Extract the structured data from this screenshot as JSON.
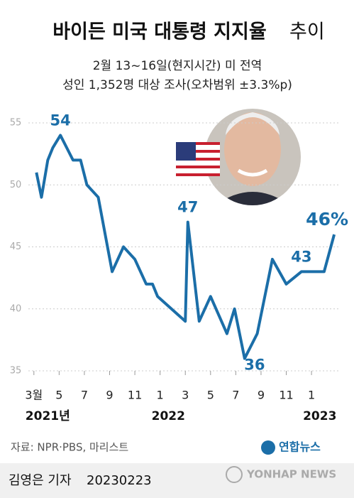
{
  "chart_data": {
    "type": "line",
    "title": "바이든 미국 대통령 지지율",
    "title_suffix": "추이",
    "subtitle": [
      "2월 13~16일(현지시간) 미 전역",
      "성인 1,352명 대상 조사(오차범위 ±3.3%p)"
    ],
    "x": [
      0.2,
      0.6,
      1.1,
      1.5,
      2.1,
      2.6,
      3.1,
      3.7,
      4.2,
      5.1,
      6.2,
      7.1,
      8.0,
      8.9,
      9.4,
      9.8,
      12.0,
      12.2,
      13.1,
      14.0,
      15.3,
      15.9,
      16.7,
      17.7,
      18.9,
      20.0,
      21.2,
      22.2,
      23.0,
      23.8
    ],
    "values": [
      51,
      49,
      52,
      53,
      54,
      53,
      52,
      52,
      50,
      49,
      43,
      45,
      44,
      42,
      42,
      41,
      39,
      47,
      39,
      41,
      38,
      40,
      36,
      38,
      44,
      42,
      43,
      43,
      43,
      46
    ],
    "value_labels": [
      null,
      null,
      null,
      null,
      "54",
      null,
      null,
      null,
      null,
      null,
      null,
      null,
      null,
      null,
      null,
      null,
      null,
      "47",
      null,
      null,
      null,
      null,
      "36",
      null,
      null,
      null,
      "43",
      null,
      null,
      "46%"
    ],
    "color": "#1b6ea8",
    "xlim": [
      -1,
      24.3
    ],
    "xticks": [
      {
        "value": 0,
        "label": "3월"
      },
      {
        "value": 2,
        "label": "5"
      },
      {
        "value": 4,
        "label": "7"
      },
      {
        "value": 6,
        "label": "9"
      },
      {
        "value": 8,
        "label": "11"
      },
      {
        "value": 10,
        "label": "1"
      },
      {
        "value": 12,
        "label": "3"
      },
      {
        "value": 14,
        "label": "5"
      },
      {
        "value": 16,
        "label": "7"
      },
      {
        "value": 18,
        "label": "9"
      },
      {
        "value": 20,
        "label": "11"
      },
      {
        "value": 22,
        "label": "1"
      }
    ],
    "year_labels": [
      {
        "value": 0,
        "label": "2021년"
      },
      {
        "value": 10,
        "label": "2022"
      },
      {
        "value": 22,
        "label": "2023"
      }
    ],
    "ylim": [
      35,
      55
    ],
    "yticks": [
      35,
      40,
      45,
      50,
      55
    ],
    "grid": true,
    "source": "자료: NPR·PBS, 마리스트",
    "logo": "연합뉴스",
    "credit": "김영은 기자",
    "date": "20230223",
    "agency": "YONHAP NEWS"
  }
}
